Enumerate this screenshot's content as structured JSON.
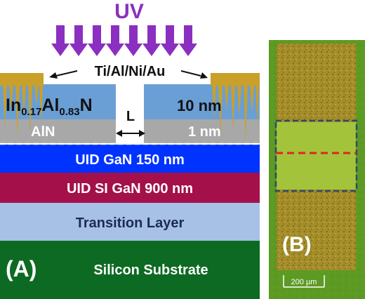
{
  "panel_a": {
    "panel_label": "(A)",
    "uv_label": "UV",
    "contact_label": "Ti/Al/Ni/Au",
    "barrier_label": {
      "base": "In",
      "sub1": "0.17",
      "mid": "Al",
      "sub2": "0.83",
      "tail": "N"
    },
    "barrier_thickness": "10 nm",
    "spacer_label": "AlN",
    "spacer_thickness": "1 nm",
    "gap_label": "L",
    "layers": [
      {
        "label": "UID GaN 150 nm",
        "color": "#0033ff",
        "text_color": "#ffffff"
      },
      {
        "label": "UID SI GaN 900 nm",
        "color": "#a3104a",
        "text_color": "#ffffff"
      },
      {
        "label": "Transition Layer",
        "color": "#a7c1e6",
        "text_color": "#1c2a56"
      },
      {
        "label": "Silicon Substrate",
        "color": "#0d6a22",
        "text_color": "#ffffff"
      }
    ],
    "colors": {
      "arrow": "#8a2fbf",
      "barrier": "#6a9fd6",
      "spacer": "#a8a8a8",
      "contact": "#c9a02a",
      "heading": "#8a2fbf"
    }
  },
  "panel_b": {
    "panel_label": "(B)",
    "scale_bar_label": "200 µm",
    "colors": {
      "background": "#5c9a24",
      "pad": "#a58e2a",
      "channel": "#a3c43a",
      "dash_box": "#2d4a6a",
      "center_line": "#e02424"
    }
  }
}
